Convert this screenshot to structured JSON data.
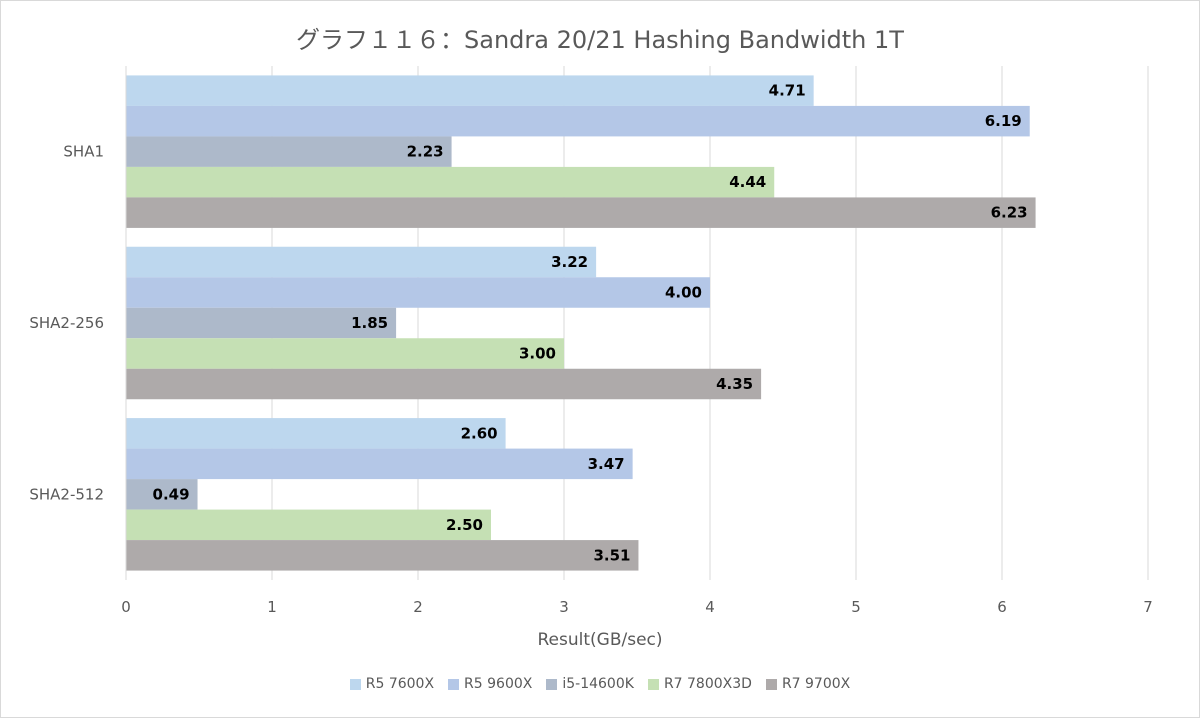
{
  "title": "グラフ１１６：Sandra 20/21 Hashing Bandwidth 1T",
  "chart_data": {
    "type": "bar",
    "orientation": "horizontal",
    "title": "グラフ１１６：Sandra 20/21 Hashing Bandwidth 1T",
    "xlabel": "Result(GB/sec)",
    "ylabel": "",
    "xlim": [
      0,
      7
    ],
    "xticks": [
      "0",
      "1",
      "2",
      "3",
      "4",
      "5",
      "6",
      "7"
    ],
    "grid": true,
    "legend_position": "bottom",
    "categories": [
      "SHA1",
      "SHA2-256",
      "SHA2-512"
    ],
    "series": [
      {
        "name": "R5 7600X",
        "color": "#bdd7ee",
        "values": [
          4.71,
          3.22,
          2.6
        ],
        "labels": [
          "4.71",
          "3.22",
          "2.60"
        ]
      },
      {
        "name": "R5 9600X",
        "color": "#b4c7e7",
        "values": [
          6.19,
          4.0,
          3.47
        ],
        "labels": [
          "6.19",
          "4.00",
          "3.47"
        ]
      },
      {
        "name": "i5-14600K",
        "color": "#adb9ca",
        "values": [
          2.23,
          1.85,
          0.49
        ],
        "labels": [
          "2.23",
          "1.85",
          "0.49"
        ]
      },
      {
        "name": "R7 7800X3D",
        "color": "#c5e0b4",
        "values": [
          4.44,
          3.0,
          2.5
        ],
        "labels": [
          "4.44",
          "3.00",
          "2.50"
        ]
      },
      {
        "name": "R7 9700X",
        "color": "#aeaaaa",
        "values": [
          6.23,
          4.35,
          3.51
        ],
        "labels": [
          "6.23",
          "4.35",
          "3.51"
        ]
      }
    ]
  }
}
